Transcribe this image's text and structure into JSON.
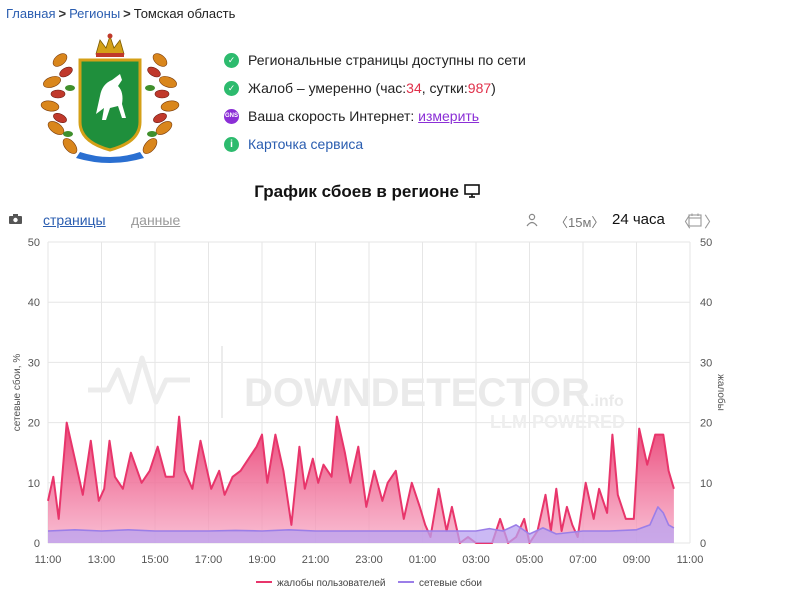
{
  "breadcrumb": {
    "home": "Главная",
    "regions": "Регионы",
    "current": "Томская область",
    "separator": ">"
  },
  "status": {
    "item1": "Региональные страницы доступны по сети",
    "item2_prefix": "Жалоб – умеренно (час: ",
    "item2_hour": "34",
    "item2_mid": ", сутки: ",
    "item2_day": "987",
    "item2_suffix": ")",
    "item3_label": "Ваша скорость Интернет: ",
    "item3_link": "измерить",
    "item3_badge": "GNS",
    "item4_badge": "i",
    "item4_link": "Карточка сервиса"
  },
  "chart_title": "График сбоев в регионе",
  "toolbar": {
    "tab_pages": "страницы",
    "tab_data": "данные",
    "interval": "〈15м〉",
    "range": "24 часа",
    "prev": "〈",
    "next": "〉"
  },
  "watermark": {
    "main": "DOWNDETECTOR",
    "suffix": ".info",
    "sub": "LLM POWERED"
  },
  "colors": {
    "complaints": "#e8356b",
    "outages": "#9b7ee8",
    "grid": "#e6e6e6"
  },
  "chart_data": {
    "type": "area",
    "ylabel": "сетевые сбои, %",
    "y2label": "жалобы",
    "ylim": [
      0,
      50
    ],
    "y_ticks": [
      "0",
      "10",
      "20",
      "30",
      "40",
      "50"
    ],
    "x_tick_labels": [
      "11:00",
      "13:00",
      "15:00",
      "17:00",
      "19:00",
      "21:00",
      "23:00",
      "01:00",
      "03:00",
      "05:00",
      "07:00",
      "09:00",
      "11:00"
    ],
    "x_hours": [
      11,
      35
    ],
    "legend": "bottom-center",
    "series": [
      {
        "name": "жалобы пользователей",
        "color": "#e8356b",
        "x": [
          11.0,
          11.2,
          11.4,
          11.7,
          12.0,
          12.3,
          12.6,
          12.9,
          13.1,
          13.3,
          13.5,
          13.8,
          14.1,
          14.5,
          14.8,
          15.1,
          15.4,
          15.7,
          15.9,
          16.1,
          16.4,
          16.7,
          16.9,
          17.1,
          17.4,
          17.6,
          17.9,
          18.2,
          18.5,
          18.8,
          19.0,
          19.2,
          19.5,
          19.8,
          20.1,
          20.4,
          20.6,
          20.9,
          21.1,
          21.3,
          21.6,
          21.8,
          22.1,
          22.3,
          22.6,
          22.9,
          23.2,
          23.5,
          23.7,
          24.0,
          24.3,
          24.6,
          24.9,
          25.1,
          25.3,
          25.6,
          25.9,
          26.1,
          26.4,
          26.7,
          27.0,
          27.3,
          27.6,
          27.9,
          28.2,
          28.5,
          28.8,
          29.0,
          29.3,
          29.6,
          29.8,
          30.0,
          30.2,
          30.4,
          30.6,
          30.8,
          31.1,
          31.4,
          31.6,
          31.9,
          32.1,
          32.3,
          32.6,
          32.9,
          33.1,
          33.4,
          33.7,
          34.0,
          34.2,
          34.4
        ],
        "values": [
          7,
          11,
          4,
          20,
          14,
          8,
          17,
          7,
          9,
          17,
          11,
          9,
          15,
          10,
          12,
          16,
          11,
          11,
          21,
          12,
          9,
          17,
          13,
          9,
          12,
          8,
          11,
          12,
          14,
          16,
          18,
          10,
          18,
          12,
          3,
          16,
          9,
          14,
          10,
          13,
          11,
          21,
          15,
          10,
          16,
          6,
          12,
          7,
          10,
          12,
          4,
          10,
          6,
          3,
          1,
          9,
          2,
          6,
          0,
          1,
          0,
          0,
          0,
          4,
          0,
          1,
          4,
          0,
          2,
          8,
          2,
          9,
          2,
          6,
          3,
          1,
          10,
          4,
          9,
          5,
          18,
          8,
          4,
          4,
          19,
          13,
          18,
          18,
          12,
          9
        ]
      },
      {
        "name": "сетевые сбои",
        "color": "#9b7ee8",
        "x": [
          11.0,
          12.0,
          13.0,
          14.0,
          15.0,
          16.0,
          17.0,
          18.0,
          19.0,
          20.0,
          21.0,
          22.0,
          23.0,
          24.0,
          25.0,
          26.0,
          27.0,
          27.5,
          28.0,
          28.5,
          29.0,
          29.5,
          30.0,
          31.0,
          32.0,
          33.0,
          33.5,
          33.8,
          34.0,
          34.2,
          34.4
        ],
        "values": [
          2,
          2.2,
          2,
          2.2,
          2,
          2,
          2,
          2.1,
          2,
          2.2,
          2,
          2,
          2,
          2,
          2,
          2,
          2,
          2.4,
          2,
          3,
          1.5,
          2.5,
          1.5,
          2,
          2,
          2.2,
          3,
          6,
          5,
          3,
          2.5
        ]
      }
    ]
  }
}
